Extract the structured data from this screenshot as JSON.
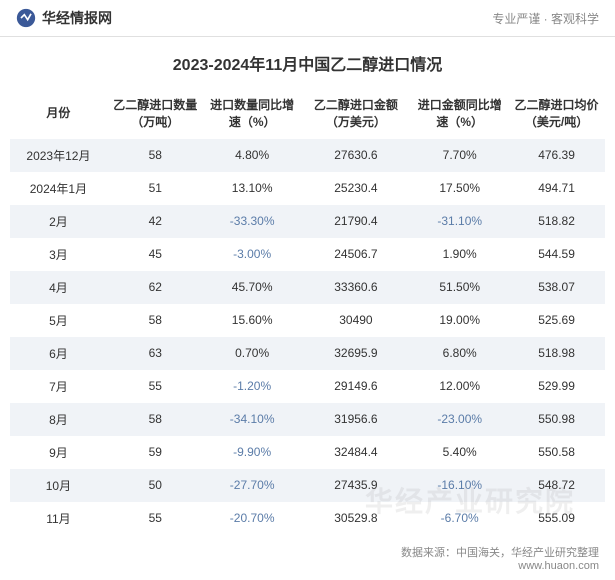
{
  "header": {
    "logo_text": "华经情报网",
    "tagline": "专业严谨 · 客观科学"
  },
  "title": "2023-2024年11月中国乙二醇进口情况",
  "table": {
    "type": "table",
    "columns": [
      "月份",
      "乙二醇进口数量（万吨）",
      "进口数量同比增速（%）",
      "乙二醇进口金额（万美元）",
      "进口金额同比增速（%）",
      "乙二醇进口均价（美元/吨）"
    ],
    "rows": [
      {
        "month": "2023年12月",
        "qty": "58",
        "qty_growth": "4.80%",
        "qty_growth_neg": false,
        "amount": "27630.6",
        "amount_growth": "7.70%",
        "amount_growth_neg": false,
        "price": "476.39"
      },
      {
        "month": "2024年1月",
        "qty": "51",
        "qty_growth": "13.10%",
        "qty_growth_neg": false,
        "amount": "25230.4",
        "amount_growth": "17.50%",
        "amount_growth_neg": false,
        "price": "494.71"
      },
      {
        "month": "2月",
        "qty": "42",
        "qty_growth": "-33.30%",
        "qty_growth_neg": true,
        "amount": "21790.4",
        "amount_growth": "-31.10%",
        "amount_growth_neg": true,
        "price": "518.82"
      },
      {
        "month": "3月",
        "qty": "45",
        "qty_growth": "-3.00%",
        "qty_growth_neg": true,
        "amount": "24506.7",
        "amount_growth": "1.90%",
        "amount_growth_neg": false,
        "price": "544.59"
      },
      {
        "month": "4月",
        "qty": "62",
        "qty_growth": "45.70%",
        "qty_growth_neg": false,
        "amount": "33360.6",
        "amount_growth": "51.50%",
        "amount_growth_neg": false,
        "price": "538.07"
      },
      {
        "month": "5月",
        "qty": "58",
        "qty_growth": "15.60%",
        "qty_growth_neg": false,
        "amount": "30490",
        "amount_growth": "19.00%",
        "amount_growth_neg": false,
        "price": "525.69"
      },
      {
        "month": "6月",
        "qty": "63",
        "qty_growth": "0.70%",
        "qty_growth_neg": false,
        "amount": "32695.9",
        "amount_growth": "6.80%",
        "amount_growth_neg": false,
        "price": "518.98"
      },
      {
        "month": "7月",
        "qty": "55",
        "qty_growth": "-1.20%",
        "qty_growth_neg": true,
        "amount": "29149.6",
        "amount_growth": "12.00%",
        "amount_growth_neg": false,
        "price": "529.99"
      },
      {
        "month": "8月",
        "qty": "58",
        "qty_growth": "-34.10%",
        "qty_growth_neg": true,
        "amount": "31956.6",
        "amount_growth": "-23.00%",
        "amount_growth_neg": true,
        "price": "550.98"
      },
      {
        "month": "9月",
        "qty": "59",
        "qty_growth": "-9.90%",
        "qty_growth_neg": true,
        "amount": "32484.4",
        "amount_growth": "5.40%",
        "amount_growth_neg": false,
        "price": "550.58"
      },
      {
        "month": "10月",
        "qty": "50",
        "qty_growth": "-27.70%",
        "qty_growth_neg": true,
        "amount": "27435.9",
        "amount_growth": "-16.10%",
        "amount_growth_neg": true,
        "price": "548.72"
      },
      {
        "month": "11月",
        "qty": "55",
        "qty_growth": "-20.70%",
        "qty_growth_neg": true,
        "amount": "30529.8",
        "amount_growth": "-6.70%",
        "amount_growth_neg": true,
        "price": "555.09"
      }
    ],
    "row_bg_odd": "#f0f3f7",
    "row_bg_even": "#ffffff",
    "negative_color": "#5b7ca8",
    "text_color": "#333333",
    "font_size": 12
  },
  "footer": {
    "source_label": "数据来源：",
    "source_text": "中国海关，华经产业研究整理",
    "url": "www.huaon.com"
  },
  "watermark": "华经产业研究院",
  "colors": {
    "border": "#e0e0e0",
    "background": "#ffffff",
    "text_primary": "#333333",
    "text_secondary": "#888888",
    "logo_blue": "#3b5998"
  }
}
